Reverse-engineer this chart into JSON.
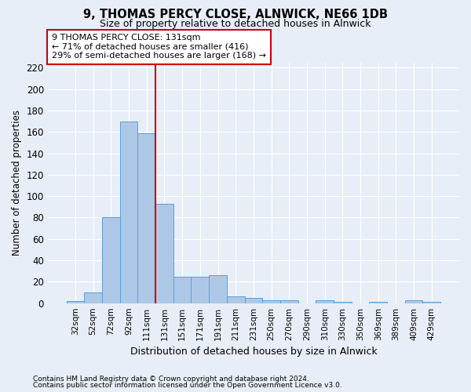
{
  "title": "9, THOMAS PERCY CLOSE, ALNWICK, NE66 1DB",
  "subtitle": "Size of property relative to detached houses in Alnwick",
  "xlabel": "Distribution of detached houses by size in Alnwick",
  "ylabel": "Number of detached properties",
  "footnote1": "Contains HM Land Registry data © Crown copyright and database right 2024.",
  "footnote2": "Contains public sector information licensed under the Open Government Licence v3.0.",
  "bins": [
    "32sqm",
    "52sqm",
    "72sqm",
    "92sqm",
    "111sqm",
    "131sqm",
    "151sqm",
    "171sqm",
    "191sqm",
    "211sqm",
    "231sqm",
    "250sqm",
    "270sqm",
    "290sqm",
    "310sqm",
    "330sqm",
    "350sqm",
    "369sqm",
    "389sqm",
    "409sqm",
    "429sqm"
  ],
  "values": [
    2,
    10,
    80,
    170,
    159,
    93,
    25,
    25,
    26,
    6,
    5,
    3,
    3,
    0,
    3,
    1,
    0,
    1,
    0,
    3,
    1
  ],
  "bar_color": "#adc8e6",
  "bar_edge_color": "#5a9fd4",
  "vline_idx": 5,
  "vline_color": "#cc0000",
  "annotation_line1": "9 THOMAS PERCY CLOSE: 131sqm",
  "annotation_line2": "← 71% of detached houses are smaller (416)",
  "annotation_line3": "29% of semi-detached houses are larger (168) →",
  "annotation_box_color": "white",
  "annotation_box_edge": "#cc0000",
  "bg_color": "#e8eef7",
  "grid_color": "white",
  "ylim": [
    0,
    225
  ],
  "yticks": [
    0,
    20,
    40,
    60,
    80,
    100,
    120,
    140,
    160,
    180,
    200,
    220
  ]
}
